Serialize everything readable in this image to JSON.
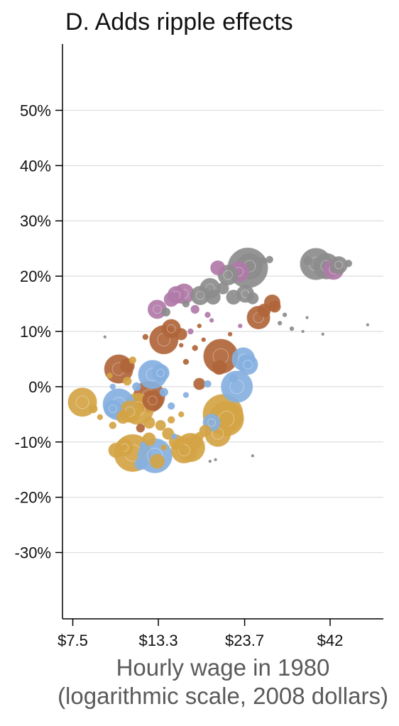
{
  "chart_data": {
    "type": "scatter",
    "title": "D. Adds ripple effects",
    "xlabel": "Hourly wage in 1980",
    "xlabel_sub": "(logarithmic scale, 2008 dollars)",
    "ylabel": "",
    "x_scale": "log",
    "xlim": [
      7.0,
      60.0
    ],
    "ylim": [
      -42,
      62
    ],
    "x_ticks": [
      7.5,
      13.3,
      23.7,
      42
    ],
    "x_tick_labels": [
      "$7.5",
      "$13.3",
      "$23.7",
      "$42"
    ],
    "y_ticks": [
      50,
      40,
      30,
      20,
      10,
      0,
      -10,
      -20,
      -30
    ],
    "y_tick_labels": [
      "50%",
      "40%",
      "30%",
      "20%",
      "10%",
      "0%",
      "-10%",
      "-20%",
      "-30%"
    ],
    "grid": "horizontal",
    "legend": "none",
    "colors": {
      "gray": "#8c8c8c",
      "purple": "#b07aa8",
      "brown": "#b0653a",
      "blue": "#86b0e0",
      "gold": "#d4a445"
    },
    "points": [
      {
        "x": 24.2,
        "y": 21.5,
        "c": "gray",
        "s": 28
      },
      {
        "x": 24.5,
        "y": 21.8,
        "c": "gray",
        "s": 18
      },
      {
        "x": 22.8,
        "y": 20.8,
        "c": "purple",
        "s": 14
      },
      {
        "x": 21.2,
        "y": 20.2,
        "c": "gray",
        "s": 14
      },
      {
        "x": 19.8,
        "y": 21.5,
        "c": "purple",
        "s": 10
      },
      {
        "x": 26.8,
        "y": 22.8,
        "c": "gray",
        "s": 5
      },
      {
        "x": 28.0,
        "y": 23.0,
        "c": "gray",
        "s": 5
      },
      {
        "x": 38.2,
        "y": 22.2,
        "c": "gray",
        "s": 22
      },
      {
        "x": 41.0,
        "y": 21.8,
        "c": "gray",
        "s": 18
      },
      {
        "x": 43.0,
        "y": 21.2,
        "c": "purple",
        "s": 14
      },
      {
        "x": 44.5,
        "y": 22.0,
        "c": "gray",
        "s": 12
      },
      {
        "x": 47.5,
        "y": 22.3,
        "c": "gray",
        "s": 5
      },
      {
        "x": 36.2,
        "y": 22.8,
        "c": "gray",
        "s": 6
      },
      {
        "x": 18.8,
        "y": 17.8,
        "c": "gray",
        "s": 14
      },
      {
        "x": 20.5,
        "y": 17.8,
        "c": "gray",
        "s": 8
      },
      {
        "x": 17.6,
        "y": 16.5,
        "c": "gray",
        "s": 13
      },
      {
        "x": 19.2,
        "y": 16.2,
        "c": "gray",
        "s": 10
      },
      {
        "x": 22.0,
        "y": 16.2,
        "c": "gray",
        "s": 10
      },
      {
        "x": 23.8,
        "y": 16.8,
        "c": "gray",
        "s": 12
      },
      {
        "x": 25.0,
        "y": 16.0,
        "c": "gray",
        "s": 8
      },
      {
        "x": 15.8,
        "y": 16.8,
        "c": "purple",
        "s": 14
      },
      {
        "x": 15.0,
        "y": 16.6,
        "c": "purple",
        "s": 12
      },
      {
        "x": 14.5,
        "y": 15.8,
        "c": "purple",
        "s": 10
      },
      {
        "x": 13.2,
        "y": 14.0,
        "c": "purple",
        "s": 13
      },
      {
        "x": 17.0,
        "y": 14.0,
        "c": "purple",
        "s": 6
      },
      {
        "x": 18.5,
        "y": 13.0,
        "c": "purple",
        "s": 4
      },
      {
        "x": 14.0,
        "y": 13.5,
        "c": "gray",
        "s": 6
      },
      {
        "x": 16.0,
        "y": 15.0,
        "c": "gray",
        "s": 5
      },
      {
        "x": 28.5,
        "y": 15.2,
        "c": "brown",
        "s": 11
      },
      {
        "x": 27.0,
        "y": 13.8,
        "c": "brown",
        "s": 9
      },
      {
        "x": 26.0,
        "y": 12.5,
        "c": "brown",
        "s": 16
      },
      {
        "x": 29.0,
        "y": 14.5,
        "c": "brown",
        "s": 8
      },
      {
        "x": 30.0,
        "y": 11.5,
        "c": "gray",
        "s": 3
      },
      {
        "x": 31.0,
        "y": 13.0,
        "c": "gray",
        "s": 3
      },
      {
        "x": 32.5,
        "y": 10.5,
        "c": "gray",
        "s": 3
      },
      {
        "x": 35.0,
        "y": 10.0,
        "c": "gray",
        "s": 2
      },
      {
        "x": 36.0,
        "y": 12.5,
        "c": "gray",
        "s": 2
      },
      {
        "x": 40.0,
        "y": 9.5,
        "c": "gray",
        "s": 2
      },
      {
        "x": 54.0,
        "y": 11.2,
        "c": "gray",
        "s": 2
      },
      {
        "x": 13.8,
        "y": 8.5,
        "c": "brown",
        "s": 20
      },
      {
        "x": 14.5,
        "y": 10.5,
        "c": "brown",
        "s": 13
      },
      {
        "x": 15.5,
        "y": 9.5,
        "c": "brown",
        "s": 8
      },
      {
        "x": 12.2,
        "y": 9.0,
        "c": "brown",
        "s": 4
      },
      {
        "x": 16.5,
        "y": 10.0,
        "c": "purple",
        "s": 4
      },
      {
        "x": 17.5,
        "y": 11.0,
        "c": "brown",
        "s": 3
      },
      {
        "x": 19.0,
        "y": 12.0,
        "c": "purple",
        "s": 3
      },
      {
        "x": 21.5,
        "y": 9.5,
        "c": "brown",
        "s": 3
      },
      {
        "x": 23.0,
        "y": 11.0,
        "c": "purple",
        "s": 3
      },
      {
        "x": 20.2,
        "y": 5.5,
        "c": "brown",
        "s": 24
      },
      {
        "x": 20.0,
        "y": 3.5,
        "c": "brown",
        "s": 10
      },
      {
        "x": 17.0,
        "y": 7.0,
        "c": "brown",
        "s": 4
      },
      {
        "x": 18.0,
        "y": 8.5,
        "c": "brown",
        "s": 3
      },
      {
        "x": 16.0,
        "y": 4.5,
        "c": "brown",
        "s": 4
      },
      {
        "x": 15.5,
        "y": 7.5,
        "c": "brown",
        "s": 3
      },
      {
        "x": 23.5,
        "y": 5.0,
        "c": "blue",
        "s": 16
      },
      {
        "x": 24.2,
        "y": 4.0,
        "c": "blue",
        "s": 14
      },
      {
        "x": 22.0,
        "y": 1.5,
        "c": "blue",
        "s": 6
      },
      {
        "x": 22.5,
        "y": 0.0,
        "c": "blue",
        "s": 22
      },
      {
        "x": 18.5,
        "y": 0.5,
        "c": "blue",
        "s": 5
      },
      {
        "x": 17.5,
        "y": 0.5,
        "c": "brown",
        "s": 8
      },
      {
        "x": 16.0,
        "y": -1.5,
        "c": "blue",
        "s": 4
      },
      {
        "x": 10.2,
        "y": 3.2,
        "c": "brown",
        "s": 20
      },
      {
        "x": 10.8,
        "y": 3.8,
        "c": "brown",
        "s": 10
      },
      {
        "x": 11.2,
        "y": 4.8,
        "c": "gold",
        "s": 5
      },
      {
        "x": 10.8,
        "y": 1.0,
        "c": "gold",
        "s": 6
      },
      {
        "x": 9.6,
        "y": 2.0,
        "c": "gold",
        "s": 4
      },
      {
        "x": 9.8,
        "y": 0.0,
        "c": "blue",
        "s": 4
      },
      {
        "x": 11.5,
        "y": 0.0,
        "c": "blue",
        "s": 6
      },
      {
        "x": 12.8,
        "y": 2.2,
        "c": "blue",
        "s": 20
      },
      {
        "x": 13.5,
        "y": 2.5,
        "c": "blue",
        "s": 12
      },
      {
        "x": 12.5,
        "y": -1.8,
        "c": "brown",
        "s": 22
      },
      {
        "x": 12.8,
        "y": -2.5,
        "c": "brown",
        "s": 14
      },
      {
        "x": 13.8,
        "y": -1.0,
        "c": "blue",
        "s": 6
      },
      {
        "x": 14.5,
        "y": -3.5,
        "c": "blue",
        "s": 5
      },
      {
        "x": 11.6,
        "y": -4.0,
        "c": "gold",
        "s": 22
      },
      {
        "x": 11.0,
        "y": -4.5,
        "c": "gold",
        "s": 15
      },
      {
        "x": 10.2,
        "y": -3.2,
        "c": "blue",
        "s": 22
      },
      {
        "x": 9.8,
        "y": -4.0,
        "c": "blue",
        "s": 12
      },
      {
        "x": 8.0,
        "y": -2.8,
        "c": "gold",
        "s": 20
      },
      {
        "x": 8.6,
        "y": -4.0,
        "c": "gold",
        "s": 6
      },
      {
        "x": 9.0,
        "y": -5.5,
        "c": "gold",
        "s": 4
      },
      {
        "x": 9.8,
        "y": -7.0,
        "c": "gold",
        "s": 5
      },
      {
        "x": 10.5,
        "y": -5.5,
        "c": "gold",
        "s": 9
      },
      {
        "x": 11.8,
        "y": -7.5,
        "c": "brown",
        "s": 6
      },
      {
        "x": 12.5,
        "y": -6.5,
        "c": "gold",
        "s": 8
      },
      {
        "x": 13.5,
        "y": -7.0,
        "c": "gold",
        "s": 7
      },
      {
        "x": 14.5,
        "y": -6.0,
        "c": "gold",
        "s": 5
      },
      {
        "x": 15.5,
        "y": -5.0,
        "c": "gold",
        "s": 4
      },
      {
        "x": 20.5,
        "y": -5.0,
        "c": "gold",
        "s": 28
      },
      {
        "x": 21.0,
        "y": -5.8,
        "c": "gold",
        "s": 24
      },
      {
        "x": 19.8,
        "y": -8.5,
        "c": "gold",
        "s": 18
      },
      {
        "x": 19.0,
        "y": -6.5,
        "c": "blue",
        "s": 12
      },
      {
        "x": 18.2,
        "y": -8.0,
        "c": "gold",
        "s": 8
      },
      {
        "x": 22.0,
        "y": -4.0,
        "c": "gold",
        "s": 6
      },
      {
        "x": 17.0,
        "y": -10.0,
        "c": "gold",
        "s": 10
      },
      {
        "x": 16.5,
        "y": -11.0,
        "c": "gold",
        "s": 20
      },
      {
        "x": 15.8,
        "y": -11.5,
        "c": "gold",
        "s": 18
      },
      {
        "x": 15.0,
        "y": -10.0,
        "c": "gold",
        "s": 10
      },
      {
        "x": 14.2,
        "y": -8.5,
        "c": "gold",
        "s": 8
      },
      {
        "x": 17.5,
        "y": -9.0,
        "c": "gold",
        "s": 6
      },
      {
        "x": 13.0,
        "y": -12.5,
        "c": "blue",
        "s": 24
      },
      {
        "x": 13.2,
        "y": -13.5,
        "c": "gold",
        "s": 10
      },
      {
        "x": 12.5,
        "y": -9.5,
        "c": "gold",
        "s": 9
      },
      {
        "x": 11.2,
        "y": -12.0,
        "c": "gold",
        "s": 26
      },
      {
        "x": 10.6,
        "y": -11.0,
        "c": "gold",
        "s": 12
      },
      {
        "x": 10.0,
        "y": -11.5,
        "c": "gold",
        "s": 10
      },
      {
        "x": 11.8,
        "y": -14.0,
        "c": "blue",
        "s": 8
      },
      {
        "x": 12.0,
        "y": -10.5,
        "c": "blue",
        "s": 4
      },
      {
        "x": 14.8,
        "y": -9.0,
        "c": "blue",
        "s": 4
      },
      {
        "x": 13.8,
        "y": -11.0,
        "c": "gold",
        "s": 4
      },
      {
        "x": 18.8,
        "y": -13.5,
        "c": "gray",
        "s": 2
      },
      {
        "x": 19.5,
        "y": -13.2,
        "c": "gray",
        "s": 2
      },
      {
        "x": 25.0,
        "y": -12.5,
        "c": "gray",
        "s": 2
      },
      {
        "x": 9.3,
        "y": 9.0,
        "c": "gray",
        "s": 2
      }
    ]
  }
}
